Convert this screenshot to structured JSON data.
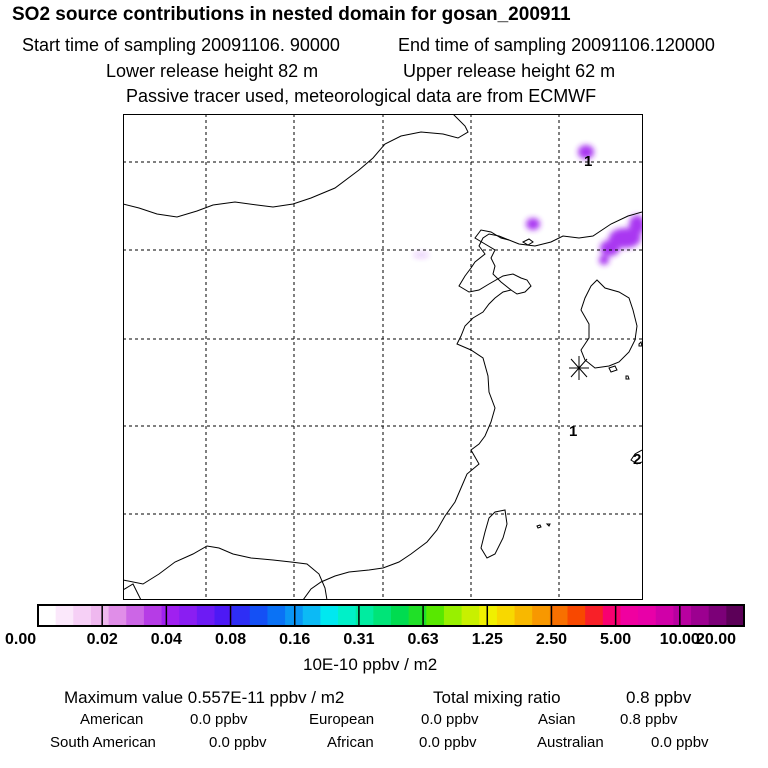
{
  "header": {
    "title": "SO2 source contributions in nested domain for gosan_200911",
    "start_time": "Start time of sampling 20091106. 90000",
    "end_time": "End time of sampling 20091106.120000",
    "lower_release": "Lower release height   82 m",
    "upper_release": "Upper release height   62 m",
    "note": "Passive tracer used, meteorological data are from ECMWF"
  },
  "map": {
    "contour_labels": [
      "1",
      "1",
      "2"
    ],
    "receptor_marker": "asterisk-marker",
    "plume_color": "#a020f0"
  },
  "colorbar": {
    "colors": [
      "#ffffff",
      "#fbe8fb",
      "#f6d0f6",
      "#efb8ef",
      "#e08ee8",
      "#cc66e6",
      "#b63ce6",
      "#a020f0",
      "#8a1ef2",
      "#6d1bf4",
      "#4d19f5",
      "#2e2ef5",
      "#1450f5",
      "#0a72f5",
      "#0a96f5",
      "#0cbaf5",
      "#00e8f0",
      "#00f0c8",
      "#00eca0",
      "#00e478",
      "#00dc50",
      "#20e028",
      "#58e800",
      "#98f000",
      "#c8f000",
      "#f0f000",
      "#f8d800",
      "#f8b800",
      "#f89800",
      "#f87000",
      "#f84800",
      "#f82028",
      "#f80070",
      "#f000a0",
      "#e800a8",
      "#d000a8",
      "#b800a0",
      "#9c0090",
      "#7c0078",
      "#5c0058"
    ],
    "tick_labels": [
      "0.00",
      "0.02",
      "0.04",
      "0.08",
      "0.16",
      "0.31",
      "0.63",
      "1.25",
      "2.50",
      "5.00",
      "10.00",
      "20.00"
    ],
    "units": "10E-10 ppbv / m2"
  },
  "summary": {
    "max_value": "Maximum value  0.557E-11 ppbv / m2",
    "total_mixing_label": "Total mixing ratio",
    "total_mixing_value": "0.8 ppbv",
    "regions": [
      {
        "name": "American",
        "value": "0.0 ppbv"
      },
      {
        "name": "European",
        "value": "0.0 ppbv"
      },
      {
        "name": "Asian",
        "value": "0.8 ppbv"
      },
      {
        "name": "South American",
        "value": "0.0 ppbv"
      },
      {
        "name": "African",
        "value": "0.0 ppbv"
      },
      {
        "name": "Australian",
        "value": "0.0 ppbv"
      }
    ]
  }
}
